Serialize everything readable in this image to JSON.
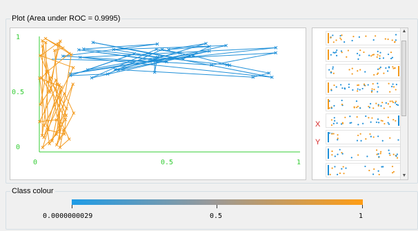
{
  "plot_panel": {
    "title": "Plot (Area under ROC = 0.9995)",
    "x_ticks": [
      "0",
      "0.5",
      "1"
    ],
    "y_ticks": [
      "1",
      "0.5",
      "0"
    ],
    "colors": {
      "axis": "#33cc33",
      "class_a": "#1f8fd8",
      "class_b": "#f39a1e"
    }
  },
  "matrix_panel": {
    "row_markers": [
      "X",
      "Y"
    ],
    "colors": {
      "class_a": "#1f8fd8",
      "class_b": "#f39a1e"
    }
  },
  "class_colour": {
    "title": "Class colour",
    "min_label": "0.0000000029",
    "mid_label": "0.5",
    "max_label": "1",
    "gradient_start": "#1e9be6",
    "gradient_end": "#ff9d14"
  }
}
